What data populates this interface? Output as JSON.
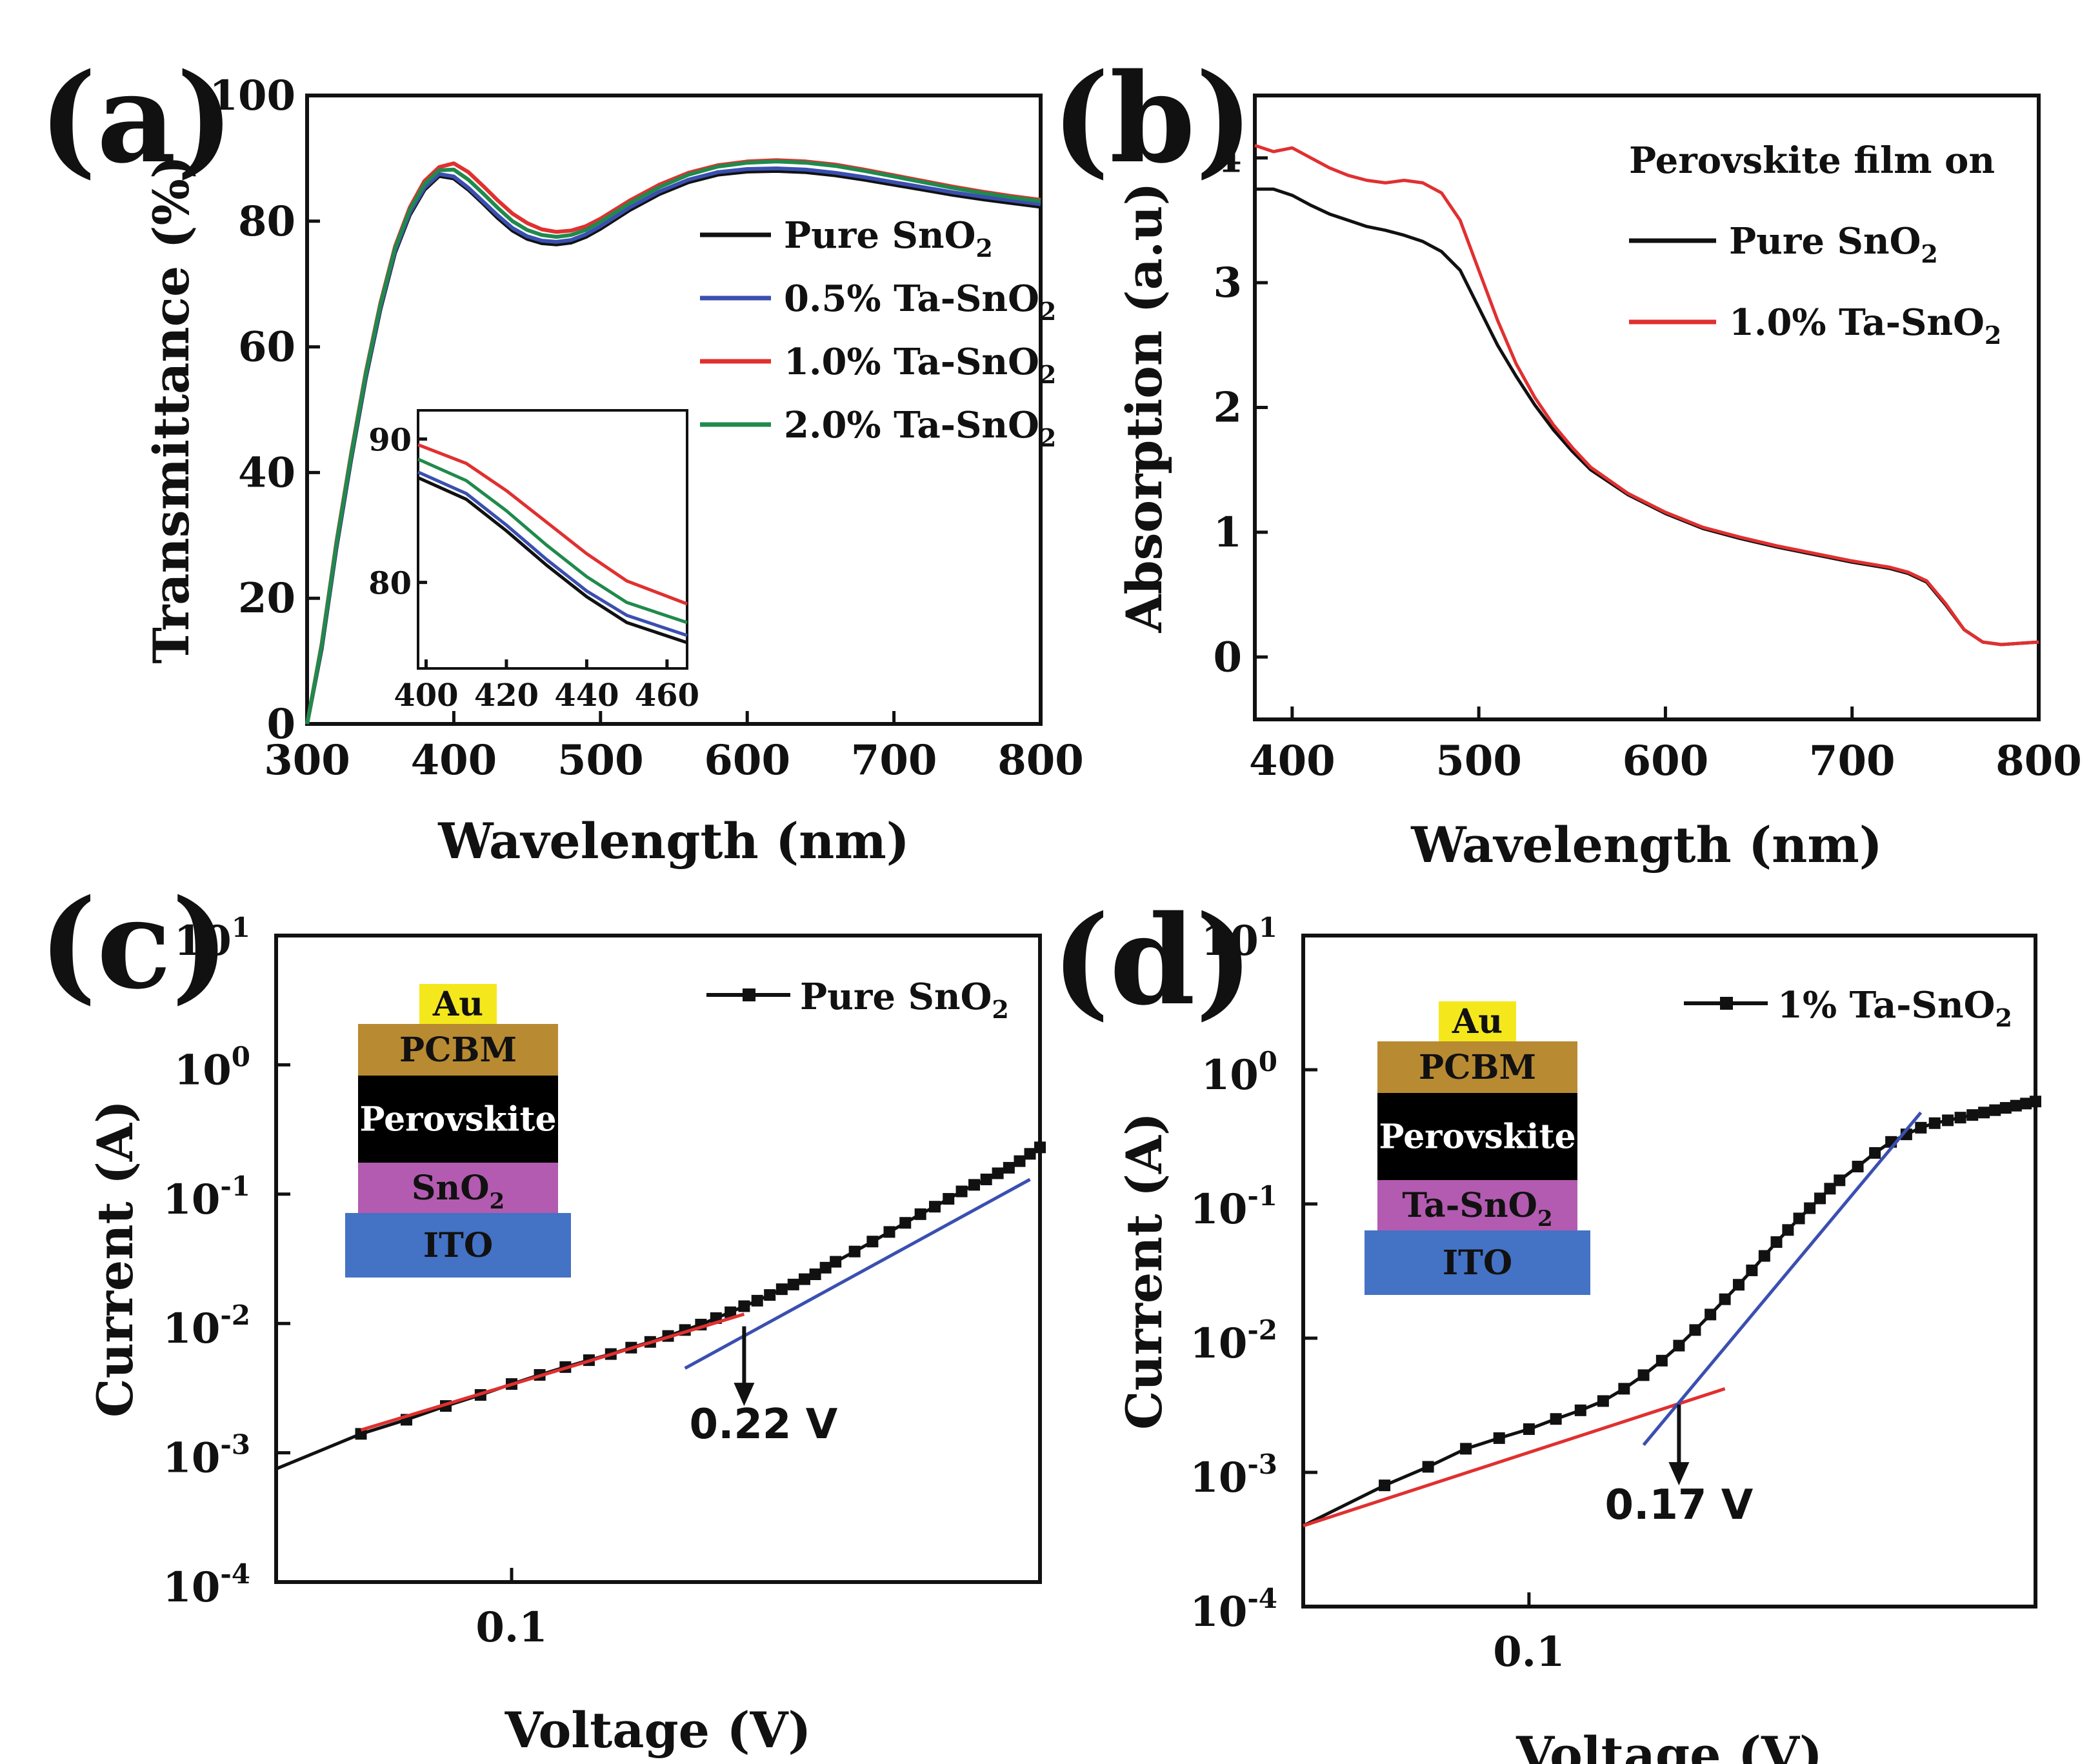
{
  "chart_data": [
    {
      "panel": "(a)",
      "type": "line",
      "title": "",
      "xlabel": "Wavelength (nm)",
      "ylabel": "Transmittance (%)",
      "xlim": [
        300,
        800
      ],
      "ylim": [
        0,
        100
      ],
      "xticks": [
        300,
        400,
        500,
        600,
        700,
        800
      ],
      "yticks": [
        0,
        20,
        40,
        60,
        80,
        100
      ],
      "legend_position": "center-right",
      "series": [
        {
          "name": "Pure SnO2",
          "name_base": "Pure SnO",
          "name_sub": "2",
          "color": "#111111",
          "x": [
            300,
            310,
            320,
            330,
            340,
            350,
            360,
            370,
            380,
            390,
            400,
            410,
            420,
            430,
            440,
            450,
            460,
            470,
            480,
            490,
            500,
            520,
            540,
            560,
            580,
            600,
            620,
            640,
            660,
            680,
            700,
            720,
            740,
            760,
            780,
            800
          ],
          "y": [
            0,
            12,
            28,
            42,
            55,
            66,
            75,
            81,
            85,
            87.2,
            86.8,
            85,
            82.8,
            80.5,
            78.5,
            77.2,
            76.5,
            76.3,
            76.6,
            77.5,
            78.8,
            81.8,
            84.3,
            86.2,
            87.4,
            87.9,
            88,
            87.8,
            87.3,
            86.6,
            85.8,
            85,
            84.2,
            83.5,
            82.9,
            82.3
          ]
        },
        {
          "name": "0.5% Ta-SnO2",
          "name_base": "0.5% Ta-SnO",
          "name_sub": "2",
          "color": "#3a4fb0",
          "x": [
            300,
            310,
            320,
            330,
            340,
            350,
            360,
            370,
            380,
            390,
            400,
            410,
            420,
            430,
            440,
            450,
            460,
            470,
            480,
            490,
            500,
            520,
            540,
            560,
            580,
            600,
            620,
            640,
            660,
            680,
            700,
            720,
            740,
            760,
            780,
            800
          ],
          "y": [
            0,
            12.3,
            28.3,
            42.3,
            55.3,
            66.3,
            75.3,
            81.3,
            85.3,
            87.5,
            87.1,
            85.3,
            83.1,
            80.9,
            78.9,
            77.6,
            76.9,
            76.7,
            77,
            77.9,
            79.2,
            82.2,
            84.7,
            86.6,
            87.8,
            88.3,
            88.4,
            88.2,
            87.7,
            87,
            86.2,
            85.4,
            84.6,
            83.9,
            83.3,
            82.7
          ]
        },
        {
          "name": "1.0% Ta-SnO2",
          "name_base": "1.0% Ta-SnO",
          "name_sub": "2",
          "color": "#e03030",
          "x": [
            300,
            310,
            320,
            330,
            340,
            350,
            360,
            370,
            380,
            390,
            400,
            410,
            420,
            430,
            440,
            450,
            460,
            470,
            480,
            490,
            500,
            520,
            540,
            560,
            580,
            600,
            620,
            640,
            660,
            680,
            700,
            720,
            740,
            760,
            780,
            800
          ],
          "y": [
            0,
            12.8,
            29,
            43,
            56,
            67,
            76,
            82.2,
            86.4,
            88.6,
            89.2,
            87.8,
            85.6,
            83.3,
            81.2,
            79.7,
            78.7,
            78.3,
            78.5,
            79.2,
            80.4,
            83.3,
            85.8,
            87.7,
            88.9,
            89.5,
            89.7,
            89.5,
            89,
            88.2,
            87.3,
            86.4,
            85.5,
            84.7,
            84,
            83.4
          ]
        },
        {
          "name": "2.0% Ta-SnO2",
          "name_base": "2.0% Ta-SnO",
          "name_sub": "2",
          "color": "#1f8a4c",
          "x": [
            300,
            310,
            320,
            330,
            340,
            350,
            360,
            370,
            380,
            390,
            400,
            410,
            420,
            430,
            440,
            450,
            460,
            470,
            480,
            490,
            500,
            520,
            540,
            560,
            580,
            600,
            620,
            640,
            660,
            680,
            700,
            720,
            740,
            760,
            780,
            800
          ],
          "y": [
            0,
            12.6,
            28.7,
            42.7,
            55.7,
            66.7,
            75.7,
            81.8,
            85.9,
            88.1,
            88.2,
            86.6,
            84.4,
            82.1,
            80,
            78.6,
            77.8,
            77.5,
            77.8,
            78.6,
            79.9,
            82.9,
            85.4,
            87.4,
            88.7,
            89.3,
            89.5,
            89.3,
            88.8,
            88,
            87.1,
            86.2,
            85.3,
            84.5,
            83.8,
            83.2
          ]
        }
      ],
      "inset": {
        "xlim": [
          398,
          465
        ],
        "ylim": [
          74,
          92
        ],
        "xticks": [
          400,
          420,
          440,
          460
        ],
        "yticks": [
          80,
          90
        ],
        "series": [
          {
            "name": "Pure SnO2",
            "color": "#111111",
            "x": [
              398,
              410,
              420,
              430,
              440,
              450,
              465
            ],
            "y": [
              87.3,
              85.8,
              83.6,
              81.2,
              79,
              77.2,
              75.8
            ]
          },
          {
            "name": "0.5% Ta-SnO2",
            "color": "#3a4fb0",
            "x": [
              398,
              410,
              420,
              430,
              440,
              450,
              465
            ],
            "y": [
              87.7,
              86.2,
              84,
              81.6,
              79.4,
              77.7,
              76.3
            ]
          },
          {
            "name": "1.0% Ta-SnO2",
            "color": "#e03030",
            "x": [
              398,
              410,
              420,
              430,
              440,
              450,
              465
            ],
            "y": [
              89.6,
              88.3,
              86.4,
              84.2,
              82,
              80.1,
              78.5
            ]
          },
          {
            "name": "2.0% Ta-SnO2",
            "color": "#1f8a4c",
            "x": [
              398,
              410,
              420,
              430,
              440,
              450,
              465
            ],
            "y": [
              88.6,
              87.1,
              85,
              82.6,
              80.4,
              78.6,
              77.2
            ]
          }
        ]
      }
    },
    {
      "panel": "(b)",
      "type": "line",
      "title": "",
      "xlabel": "Wavelength (nm)",
      "ylabel": "Absorption (a.u)",
      "xlim": [
        380,
        800
      ],
      "ylim": [
        -0.5,
        4.5
      ],
      "xticks": [
        400,
        500,
        600,
        700,
        800
      ],
      "yticks": [
        0,
        1,
        2,
        3,
        4
      ],
      "legend_title": "Perovskite film on",
      "legend_position": "top-right",
      "series": [
        {
          "name": "Pure SnO2",
          "name_base": "Pure SnO",
          "name_sub": "2",
          "color": "#111111",
          "x": [
            380,
            390,
            400,
            410,
            420,
            430,
            440,
            450,
            460,
            470,
            480,
            490,
            500,
            510,
            520,
            530,
            540,
            550,
            560,
            580,
            600,
            620,
            640,
            660,
            680,
            700,
            720,
            730,
            740,
            750,
            760,
            770,
            780,
            790,
            800
          ],
          "y": [
            3.75,
            3.75,
            3.7,
            3.62,
            3.55,
            3.5,
            3.45,
            3.42,
            3.38,
            3.33,
            3.25,
            3.1,
            2.8,
            2.5,
            2.25,
            2.02,
            1.82,
            1.65,
            1.5,
            1.3,
            1.15,
            1.03,
            0.95,
            0.88,
            0.82,
            0.76,
            0.71,
            0.67,
            0.6,
            0.42,
            0.22,
            0.12,
            0.1,
            0.11,
            0.12
          ]
        },
        {
          "name": "1.0% Ta-SnO2",
          "name_base": "1.0% Ta-SnO",
          "name_sub": "2",
          "color": "#e03030",
          "x": [
            380,
            390,
            400,
            410,
            420,
            430,
            440,
            450,
            460,
            470,
            480,
            490,
            500,
            510,
            520,
            530,
            540,
            550,
            560,
            580,
            600,
            620,
            640,
            660,
            680,
            700,
            720,
            730,
            740,
            750,
            760,
            770,
            780,
            790,
            800
          ],
          "y": [
            4.1,
            4.05,
            4.08,
            4.0,
            3.92,
            3.86,
            3.82,
            3.8,
            3.82,
            3.8,
            3.72,
            3.5,
            3.1,
            2.7,
            2.35,
            2.08,
            1.86,
            1.68,
            1.52,
            1.31,
            1.16,
            1.04,
            0.96,
            0.89,
            0.83,
            0.77,
            0.72,
            0.68,
            0.61,
            0.43,
            0.22,
            0.12,
            0.1,
            0.11,
            0.12
          ]
        }
      ]
    },
    {
      "panel": "(c)",
      "type": "line",
      "scale": "log-log",
      "title": "",
      "xlabel": "Voltage (V)",
      "ylabel": "Current (A)",
      "xlim": [
        0.045,
        0.6
      ],
      "ylim": [
        0.0001,
        10
      ],
      "xticks": [
        0.1
      ],
      "yticks": [
        0.0001,
        0.001,
        0.01,
        0.1,
        1,
        10
      ],
      "ytick_labels": [
        {
          "base": "10",
          "exp": "-4"
        },
        {
          "base": "10",
          "exp": "-3"
        },
        {
          "base": "10",
          "exp": "-2"
        },
        {
          "base": "10",
          "exp": "-1"
        },
        {
          "base": "10",
          "exp": "0"
        },
        {
          "base": "10",
          "exp": "1"
        }
      ],
      "legend_position": "top-right",
      "series": [
        {
          "name": "Pure SnO2",
          "name_base": "Pure SnO",
          "name_sub": "2",
          "color": "#111111",
          "marker": "square",
          "x": [
            0.045,
            0.06,
            0.07,
            0.08,
            0.09,
            0.1,
            0.11,
            0.12,
            0.13,
            0.14,
            0.15,
            0.16,
            0.17,
            0.18,
            0.19,
            0.2,
            0.21,
            0.22,
            0.23,
            0.24,
            0.25,
            0.26,
            0.27,
            0.28,
            0.29,
            0.3,
            0.32,
            0.34,
            0.36,
            0.38,
            0.4,
            0.42,
            0.44,
            0.46,
            0.48,
            0.5,
            0.52,
            0.54,
            0.56,
            0.58,
            0.6
          ],
          "y": [
            0.00075,
            0.0014,
            0.0018,
            0.0023,
            0.0028,
            0.0034,
            0.004,
            0.0046,
            0.0052,
            0.0058,
            0.0065,
            0.0072,
            0.008,
            0.0089,
            0.0098,
            0.011,
            0.0122,
            0.0136,
            0.015,
            0.0166,
            0.0184,
            0.02,
            0.022,
            0.024,
            0.027,
            0.03,
            0.036,
            0.043,
            0.051,
            0.06,
            0.07,
            0.08,
            0.092,
            0.105,
            0.118,
            0.13,
            0.145,
            0.16,
            0.18,
            0.205,
            0.23
          ]
        },
        {
          "name": "fit-low",
          "color": "#e03030",
          "marker": "none",
          "x": [
            0.06,
            0.22
          ],
          "y": [
            0.0015,
            0.0118
          ]
        },
        {
          "name": "fit-high",
          "color": "#3a4fb0",
          "marker": "none",
          "x": [
            0.18,
            0.58
          ],
          "y": [
            0.0045,
            0.13
          ]
        }
      ],
      "annotation": {
        "text": "0.22 V",
        "x": 0.22,
        "y_from": 0.0095,
        "y_to": 0.0023,
        "label_y": 0.0013
      },
      "device_stack": [
        {
          "label": "Au",
          "color": "#f4e81c"
        },
        {
          "label": "PCBM",
          "color": "#b88a32"
        },
        {
          "label": "Perovskite",
          "color": "#000000"
        },
        {
          "label_base": "SnO",
          "label_sub": "2",
          "color": "#b35bb0"
        },
        {
          "label": "ITO",
          "color": "#4472c4"
        }
      ]
    },
    {
      "panel": "(d)",
      "type": "line",
      "scale": "log-log",
      "title": "",
      "xlabel": "Voltage (V)",
      "ylabel": "Current (A)",
      "xlim": [
        0.045,
        0.6
      ],
      "ylim": [
        0.0001,
        10
      ],
      "xticks": [
        0.1
      ],
      "yticks": [
        0.0001,
        0.001,
        0.01,
        0.1,
        1,
        10
      ],
      "ytick_labels": [
        {
          "base": "10",
          "exp": "-4"
        },
        {
          "base": "10",
          "exp": "-3"
        },
        {
          "base": "10",
          "exp": "-2"
        },
        {
          "base": "10",
          "exp": "-1"
        },
        {
          "base": "10",
          "exp": "0"
        },
        {
          "base": "10",
          "exp": "1"
        }
      ],
      "legend_position": "top-right",
      "series": [
        {
          "name": "1% Ta-SnO2",
          "name_base": "1% Ta-SnO",
          "name_sub": "2",
          "color": "#111111",
          "marker": "square",
          "x": [
            0.045,
            0.06,
            0.07,
            0.08,
            0.09,
            0.1,
            0.11,
            0.12,
            0.13,
            0.14,
            0.15,
            0.16,
            0.17,
            0.18,
            0.19,
            0.2,
            0.21,
            0.22,
            0.23,
            0.24,
            0.25,
            0.26,
            0.27,
            0.28,
            0.29,
            0.3,
            0.32,
            0.34,
            0.36,
            0.38,
            0.4,
            0.42,
            0.44,
            0.46,
            0.48,
            0.5,
            0.52,
            0.54,
            0.56,
            0.58,
            0.6
          ],
          "y": [
            0.0004,
            0.0008,
            0.0011,
            0.0015,
            0.0018,
            0.0021,
            0.0025,
            0.0029,
            0.0034,
            0.0042,
            0.0053,
            0.0068,
            0.0088,
            0.0115,
            0.015,
            0.0195,
            0.025,
            0.032,
            0.041,
            0.052,
            0.064,
            0.078,
            0.093,
            0.11,
            0.13,
            0.15,
            0.19,
            0.24,
            0.29,
            0.33,
            0.37,
            0.4,
            0.42,
            0.44,
            0.46,
            0.48,
            0.5,
            0.52,
            0.54,
            0.56,
            0.58
          ]
        },
        {
          "name": "fit-low",
          "color": "#e03030",
          "marker": "none",
          "x": [
            0.045,
            0.2
          ],
          "y": [
            0.0004,
            0.0042
          ]
        },
        {
          "name": "fit-high",
          "color": "#3a4fb0",
          "marker": "none",
          "x": [
            0.15,
            0.4
          ],
          "y": [
            0.0016,
            0.48
          ]
        }
      ],
      "annotation": {
        "text": "0.17 V",
        "x": 0.17,
        "y_from": 0.0032,
        "y_to": 0.0008,
        "label_y": 0.00045
      },
      "device_stack": [
        {
          "label": "Au",
          "color": "#f4e81c"
        },
        {
          "label": "PCBM",
          "color": "#b88a32"
        },
        {
          "label": "Perovskite",
          "color": "#000000"
        },
        {
          "label_base": "Ta-SnO",
          "label_sub": "2",
          "color": "#b35bb0"
        },
        {
          "label": "ITO",
          "color": "#4472c4"
        }
      ]
    }
  ]
}
